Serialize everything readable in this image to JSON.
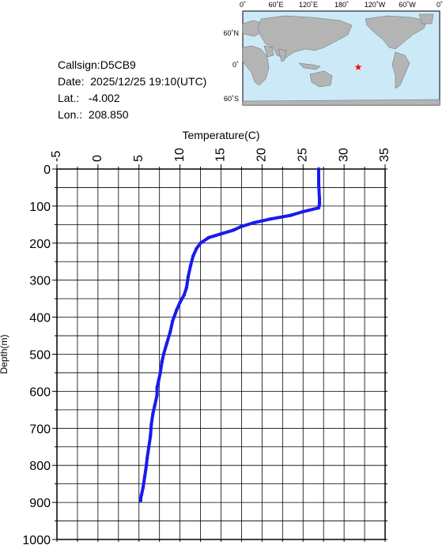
{
  "station": {
    "callsign_label": "Callsign:",
    "callsign": "D5CB9",
    "date_label": "Date:",
    "date": "2025/12/25 19:10(UTC)",
    "lat_label": "Lat.:",
    "lat": "-4.002",
    "lon_label": "Lon.:",
    "lon": "208.850"
  },
  "map": {
    "top_ticks": [
      "0˚",
      "60˚E",
      "120˚E",
      "180˚",
      "120˚W",
      "60˚W",
      "0˚"
    ],
    "side_ticks": [
      "60˚N",
      "0˚",
      "60˚S"
    ],
    "ocean_color": "#cce9f7",
    "land_color": "#b4b4b4",
    "marker_color": "#ff0000",
    "marker": "star"
  },
  "chart_data": {
    "type": "line",
    "title": "",
    "xlabel": "Temperature(C)",
    "ylabel": "Depth(m)",
    "xlim": [
      -5,
      35
    ],
    "ylim": [
      0,
      1000
    ],
    "y_inverted": true,
    "x_axis_position": "top",
    "x_ticks": [
      "-5",
      "0",
      "5",
      "10",
      "15",
      "20",
      "25",
      "30",
      "35"
    ],
    "y_ticks": [
      "0",
      "100",
      "200",
      "300",
      "400",
      "500",
      "600",
      "700",
      "800",
      "900",
      "1000"
    ],
    "grid": true,
    "line_color": "#1a1aee",
    "series": [
      {
        "x": [
          26.9,
          26.9,
          27.0,
          27.0,
          27.0,
          26.9,
          25.0,
          23.5,
          21.0,
          19.0,
          17.5,
          16.5,
          15.0,
          13.5,
          12.5,
          12.0,
          11.6,
          11.3,
          11.0,
          10.8,
          10.5,
          10.0,
          9.6,
          9.1,
          8.8,
          8.4,
          8.0,
          7.8,
          7.6,
          7.4,
          7.2,
          7.2,
          6.9,
          6.7,
          6.5,
          6.4,
          6.2,
          6.0,
          5.9,
          5.7,
          5.5,
          5.3,
          5.2,
          5.2
        ],
        "y": [
          0,
          40,
          80,
          90,
          95,
          105,
          115,
          125,
          135,
          145,
          155,
          165,
          175,
          185,
          200,
          215,
          235,
          260,
          290,
          320,
          340,
          360,
          380,
          410,
          440,
          470,
          500,
          520,
          550,
          570,
          590,
          610,
          640,
          660,
          690,
          720,
          750,
          780,
          800,
          830,
          860,
          880,
          890,
          895
        ]
      }
    ]
  }
}
